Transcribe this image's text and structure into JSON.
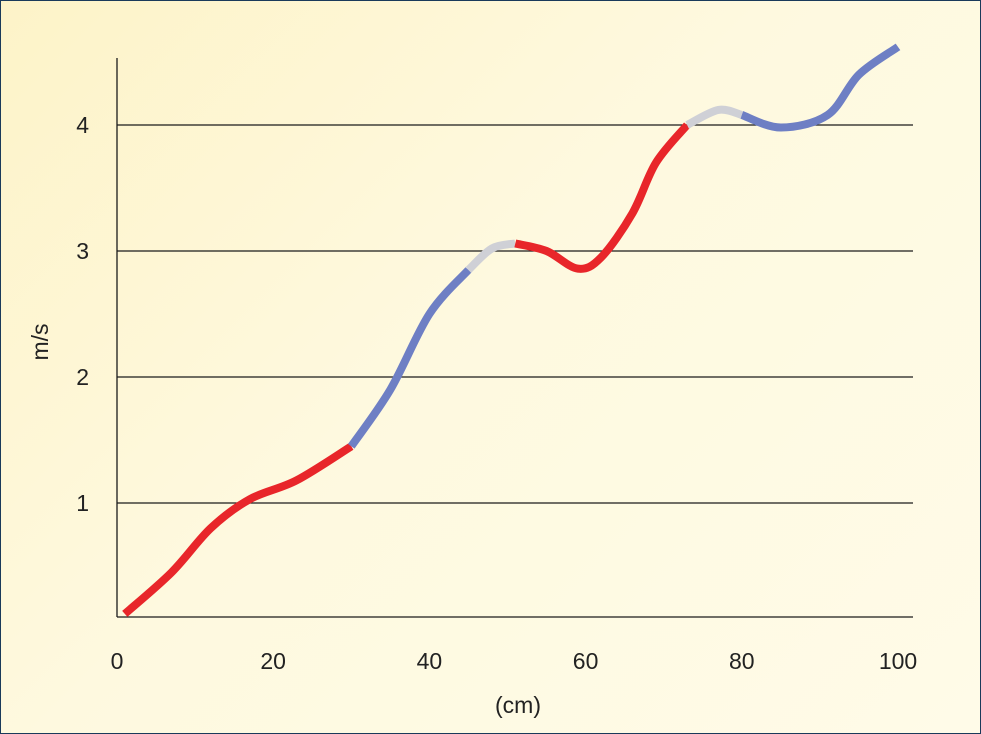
{
  "chart_data": {
    "type": "line",
    "xlabel": "(cm)",
    "ylabel": "m/s",
    "xlim": [
      0,
      100
    ],
    "ylim": [
      0.08,
      4.6
    ],
    "x_ticks": [
      0,
      20,
      40,
      60,
      80,
      100
    ],
    "y_ticks": [
      1,
      2,
      3,
      4
    ],
    "grid": "horizontal",
    "legend": "none",
    "colors": {
      "red": "#e8262a",
      "blue": "#6e7fc4",
      "gray": "#cfd0d6"
    },
    "segments": [
      {
        "color": "red",
        "x": [
          1,
          7,
          12,
          17,
          23,
          30
        ],
        "y": [
          0.12,
          0.45,
          0.8,
          1.03,
          1.18,
          1.45
        ]
      },
      {
        "color": "blue",
        "x": [
          30,
          35,
          40,
          45
        ],
        "y": [
          1.45,
          1.9,
          2.5,
          2.85
        ]
      },
      {
        "color": "gray",
        "x": [
          45,
          48,
          51
        ],
        "y": [
          2.85,
          3.02,
          3.06
        ]
      },
      {
        "color": "red",
        "x": [
          51,
          55,
          59,
          62,
          66,
          69,
          73
        ],
        "y": [
          3.06,
          3.0,
          2.86,
          2.95,
          3.3,
          3.7,
          4.0
        ]
      },
      {
        "color": "gray",
        "x": [
          73,
          77,
          80
        ],
        "y": [
          4.0,
          4.12,
          4.08
        ]
      },
      {
        "color": "blue",
        "x": [
          80,
          85,
          91,
          95,
          100
        ],
        "y": [
          4.08,
          3.98,
          4.08,
          4.4,
          4.62
        ]
      }
    ]
  }
}
